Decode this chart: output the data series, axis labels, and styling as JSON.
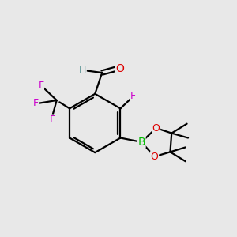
{
  "bg_color": "#e8e8e8",
  "atom_colors": {
    "C": "#000000",
    "H": "#4a8a8a",
    "O": "#dd0000",
    "F": "#cc00cc",
    "B": "#00bb00"
  },
  "bond_color": "#000000",
  "bond_width": 1.6,
  "figsize": [
    3.0,
    3.0
  ],
  "dpi": 100
}
